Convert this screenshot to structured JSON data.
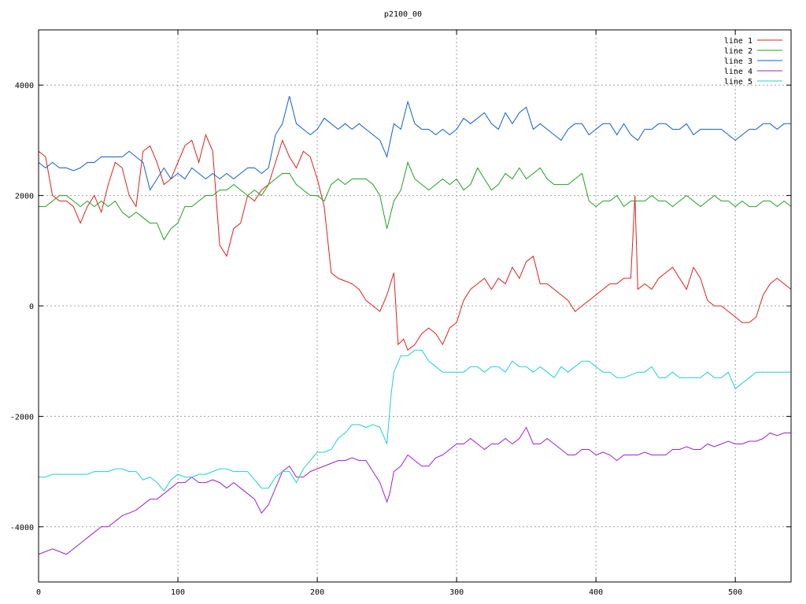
{
  "chart_data": {
    "type": "line",
    "title": "p2100_00",
    "xlim": [
      0,
      540
    ],
    "ylim": [
      -5000,
      5000
    ],
    "x_ticks": [
      0,
      100,
      200,
      300,
      400,
      500
    ],
    "y_ticks": [
      -4000,
      -2000,
      0,
      2000,
      4000
    ],
    "grid": true,
    "legend_position": "top-right",
    "series": [
      {
        "name": "line 1",
        "color": "#e0201c",
        "x": [
          0,
          5,
          10,
          15,
          20,
          25,
          30,
          35,
          40,
          45,
          50,
          55,
          60,
          65,
          70,
          75,
          80,
          85,
          90,
          95,
          100,
          105,
          110,
          115,
          120,
          125,
          130,
          135,
          140,
          145,
          150,
          155,
          160,
          165,
          170,
          175,
          180,
          185,
          190,
          195,
          200,
          205,
          210,
          215,
          220,
          225,
          230,
          235,
          240,
          245,
          250,
          255,
          258,
          262,
          265,
          270,
          275,
          280,
          285,
          290,
          295,
          300,
          305,
          310,
          315,
          320,
          325,
          330,
          335,
          340,
          345,
          350,
          355,
          360,
          365,
          370,
          375,
          380,
          385,
          390,
          395,
          400,
          405,
          410,
          415,
          420,
          425,
          428,
          430,
          435,
          440,
          445,
          450,
          455,
          460,
          465,
          470,
          475,
          480,
          485,
          490,
          495,
          500,
          505,
          510,
          515,
          520,
          525,
          530,
          535,
          540
        ],
        "y": [
          2800,
          2700,
          2000,
          1900,
          1900,
          1800,
          1500,
          1800,
          2000,
          1700,
          2200,
          2600,
          2500,
          2000,
          1800,
          2800,
          2900,
          2600,
          2200,
          2300,
          2600,
          2900,
          3000,
          2600,
          3100,
          2800,
          1100,
          900,
          1400,
          1500,
          2000,
          1900,
          2100,
          2200,
          2600,
          3000,
          2700,
          2500,
          2800,
          2700,
          2300,
          1800,
          600,
          500,
          450,
          400,
          300,
          100,
          0,
          -100,
          200,
          600,
          -700,
          -600,
          -800,
          -700,
          -500,
          -400,
          -500,
          -700,
          -400,
          -300,
          100,
          300,
          400,
          500,
          300,
          500,
          400,
          700,
          500,
          800,
          900,
          400,
          400,
          300,
          200,
          100,
          -100,
          0,
          100,
          200,
          300,
          400,
          400,
          500,
          500,
          2000,
          300,
          400,
          300,
          500,
          600,
          700,
          500,
          300,
          700,
          500,
          100,
          0,
          0,
          -100,
          -200,
          -300,
          -300,
          -200,
          200,
          400,
          500,
          400,
          300
        ]
      },
      {
        "name": "line 2",
        "color": "#20a020",
        "x": [
          0,
          5,
          10,
          15,
          20,
          25,
          30,
          35,
          40,
          45,
          50,
          55,
          60,
          65,
          70,
          75,
          80,
          85,
          90,
          95,
          100,
          105,
          110,
          115,
          120,
          125,
          130,
          135,
          140,
          145,
          150,
          155,
          160,
          165,
          170,
          175,
          180,
          185,
          190,
          195,
          200,
          205,
          210,
          215,
          220,
          225,
          230,
          235,
          240,
          245,
          250,
          255,
          260,
          265,
          270,
          275,
          280,
          285,
          290,
          295,
          300,
          305,
          310,
          315,
          320,
          325,
          330,
          335,
          340,
          345,
          350,
          355,
          360,
          365,
          370,
          375,
          380,
          385,
          390,
          395,
          400,
          405,
          410,
          415,
          420,
          425,
          430,
          435,
          440,
          445,
          450,
          455,
          460,
          465,
          470,
          475,
          480,
          485,
          490,
          495,
          500,
          505,
          510,
          515,
          520,
          525,
          530,
          535,
          540
        ],
        "y": [
          1800,
          1800,
          1900,
          2000,
          2000,
          1900,
          1800,
          1900,
          1800,
          1900,
          1800,
          1900,
          1700,
          1600,
          1700,
          1600,
          1500,
          1500,
          1200,
          1400,
          1500,
          1800,
          1800,
          1900,
          2000,
          2000,
          2100,
          2100,
          2200,
          2100,
          2000,
          2100,
          2000,
          2200,
          2300,
          2400,
          2400,
          2200,
          2100,
          2000,
          2000,
          1900,
          2200,
          2300,
          2200,
          2300,
          2300,
          2300,
          2200,
          2000,
          1400,
          1900,
          2100,
          2600,
          2300,
          2200,
          2100,
          2200,
          2300,
          2200,
          2300,
          2100,
          2200,
          2500,
          2300,
          2100,
          2200,
          2400,
          2300,
          2500,
          2300,
          2400,
          2500,
          2300,
          2200,
          2200,
          2200,
          2300,
          2400,
          1900,
          1800,
          1900,
          1900,
          2000,
          1800,
          1900,
          1900,
          1900,
          2000,
          1900,
          1900,
          1800,
          1900,
          2000,
          1900,
          1800,
          1900,
          2000,
          1900,
          1900,
          1800,
          1900,
          1800,
          1800,
          1900,
          1900,
          1800,
          1900,
          1800
        ]
      },
      {
        "name": "line 3",
        "color": "#1060c8",
        "x": [
          0,
          5,
          10,
          15,
          20,
          25,
          30,
          35,
          40,
          45,
          50,
          55,
          60,
          65,
          70,
          75,
          80,
          85,
          90,
          95,
          100,
          105,
          110,
          115,
          120,
          125,
          130,
          135,
          140,
          145,
          150,
          155,
          160,
          165,
          170,
          175,
          180,
          185,
          190,
          195,
          200,
          205,
          210,
          215,
          220,
          225,
          230,
          235,
          240,
          245,
          250,
          255,
          260,
          265,
          270,
          275,
          280,
          285,
          290,
          295,
          300,
          305,
          310,
          315,
          320,
          325,
          330,
          335,
          340,
          345,
          350,
          355,
          360,
          365,
          370,
          375,
          380,
          385,
          390,
          395,
          400,
          405,
          410,
          415,
          420,
          425,
          430,
          435,
          440,
          445,
          450,
          455,
          460,
          465,
          470,
          475,
          480,
          485,
          490,
          495,
          500,
          505,
          510,
          515,
          520,
          525,
          530,
          535,
          540
        ],
        "y": [
          2600,
          2500,
          2600,
          2500,
          2500,
          2450,
          2500,
          2600,
          2600,
          2700,
          2700,
          2700,
          2700,
          2800,
          2700,
          2600,
          2100,
          2300,
          2500,
          2300,
          2400,
          2300,
          2500,
          2400,
          2300,
          2400,
          2300,
          2400,
          2300,
          2400,
          2500,
          2500,
          2400,
          2500,
          3100,
          3300,
          3800,
          3300,
          3200,
          3100,
          3200,
          3400,
          3300,
          3200,
          3300,
          3200,
          3300,
          3200,
          3100,
          3000,
          2700,
          3300,
          3200,
          3700,
          3300,
          3200,
          3200,
          3100,
          3200,
          3100,
          3200,
          3400,
          3300,
          3400,
          3500,
          3300,
          3200,
          3500,
          3300,
          3500,
          3600,
          3200,
          3300,
          3200,
          3100,
          3000,
          3200,
          3300,
          3300,
          3100,
          3200,
          3300,
          3300,
          3100,
          3300,
          3100,
          3000,
          3200,
          3200,
          3300,
          3300,
          3200,
          3200,
          3300,
          3100,
          3200,
          3200,
          3200,
          3200,
          3100,
          3000,
          3100,
          3200,
          3200,
          3300,
          3300,
          3200,
          3300,
          3300
        ]
      },
      {
        "name": "line 4",
        "color": "#a020d0",
        "x": [
          0,
          5,
          10,
          15,
          20,
          25,
          30,
          35,
          40,
          45,
          50,
          55,
          60,
          65,
          70,
          75,
          80,
          85,
          90,
          95,
          100,
          105,
          110,
          115,
          120,
          125,
          130,
          135,
          140,
          145,
          150,
          155,
          160,
          165,
          170,
          175,
          180,
          185,
          190,
          195,
          200,
          205,
          210,
          215,
          220,
          225,
          230,
          235,
          240,
          245,
          250,
          252,
          255,
          260,
          265,
          270,
          275,
          280,
          285,
          290,
          295,
          300,
          305,
          310,
          315,
          320,
          325,
          330,
          335,
          340,
          345,
          350,
          355,
          360,
          365,
          370,
          375,
          380,
          385,
          390,
          395,
          400,
          405,
          410,
          415,
          420,
          425,
          430,
          435,
          440,
          445,
          450,
          455,
          460,
          465,
          470,
          475,
          480,
          485,
          490,
          495,
          500,
          505,
          510,
          515,
          520,
          525,
          530,
          535,
          540
        ],
        "y": [
          -4500,
          -4450,
          -4400,
          -4450,
          -4500,
          -4400,
          -4300,
          -4200,
          -4100,
          -4000,
          -4000,
          -3900,
          -3800,
          -3750,
          -3700,
          -3600,
          -3500,
          -3500,
          -3400,
          -3300,
          -3200,
          -3200,
          -3100,
          -3200,
          -3200,
          -3150,
          -3200,
          -3300,
          -3200,
          -3300,
          -3400,
          -3500,
          -3750,
          -3600,
          -3300,
          -3000,
          -2900,
          -3100,
          -3100,
          -3000,
          -2950,
          -2900,
          -2850,
          -2800,
          -2800,
          -2750,
          -2800,
          -2800,
          -3000,
          -3200,
          -3550,
          -3400,
          -3000,
          -2900,
          -2700,
          -2800,
          -2900,
          -2900,
          -2750,
          -2700,
          -2600,
          -2500,
          -2500,
          -2400,
          -2500,
          -2600,
          -2500,
          -2500,
          -2400,
          -2500,
          -2400,
          -2200,
          -2500,
          -2500,
          -2400,
          -2500,
          -2600,
          -2700,
          -2700,
          -2600,
          -2600,
          -2700,
          -2650,
          -2700,
          -2800,
          -2700,
          -2700,
          -2700,
          -2650,
          -2700,
          -2700,
          -2700,
          -2600,
          -2600,
          -2550,
          -2600,
          -2600,
          -2500,
          -2550,
          -2500,
          -2450,
          -2500,
          -2500,
          -2450,
          -2450,
          -2400,
          -2300,
          -2350,
          -2300,
          -2300
        ]
      },
      {
        "name": "line 5",
        "color": "#20d0d0",
        "x": [
          0,
          5,
          10,
          15,
          20,
          25,
          30,
          35,
          40,
          45,
          50,
          55,
          60,
          65,
          70,
          75,
          80,
          85,
          90,
          95,
          100,
          105,
          110,
          115,
          120,
          125,
          130,
          135,
          140,
          145,
          150,
          155,
          160,
          165,
          170,
          175,
          180,
          185,
          190,
          195,
          200,
          205,
          210,
          215,
          220,
          225,
          230,
          235,
          240,
          245,
          250,
          253,
          255,
          260,
          265,
          270,
          275,
          280,
          285,
          290,
          295,
          300,
          305,
          310,
          315,
          320,
          325,
          330,
          335,
          340,
          345,
          350,
          355,
          360,
          365,
          370,
          375,
          380,
          385,
          390,
          395,
          400,
          405,
          410,
          415,
          420,
          425,
          430,
          435,
          440,
          445,
          450,
          455,
          460,
          465,
          470,
          475,
          480,
          485,
          490,
          495,
          500,
          505,
          510,
          515,
          520,
          525,
          530,
          535,
          540
        ],
        "y": [
          -3100,
          -3100,
          -3050,
          -3050,
          -3050,
          -3050,
          -3050,
          -3050,
          -3000,
          -3000,
          -3000,
          -2950,
          -2950,
          -3000,
          -3000,
          -3150,
          -3100,
          -3200,
          -3350,
          -3150,
          -3050,
          -3100,
          -3100,
          -3050,
          -3050,
          -3000,
          -2950,
          -2950,
          -3000,
          -3000,
          -3000,
          -3150,
          -3300,
          -3300,
          -3100,
          -3000,
          -3000,
          -3200,
          -2950,
          -2800,
          -2650,
          -2650,
          -2600,
          -2400,
          -2300,
          -2150,
          -2150,
          -2200,
          -2150,
          -2200,
          -2500,
          -1600,
          -1200,
          -900,
          -900,
          -800,
          -800,
          -1000,
          -1100,
          -1200,
          -1200,
          -1200,
          -1200,
          -1100,
          -1100,
          -1200,
          -1100,
          -1100,
          -1200,
          -1000,
          -1100,
          -1100,
          -1200,
          -1100,
          -1200,
          -1300,
          -1100,
          -1200,
          -1100,
          -1000,
          -1000,
          -1100,
          -1200,
          -1200,
          -1300,
          -1300,
          -1250,
          -1200,
          -1200,
          -1100,
          -1300,
          -1300,
          -1200,
          -1300,
          -1300,
          -1300,
          -1300,
          -1200,
          -1300,
          -1300,
          -1200,
          -1500,
          -1400,
          -1300,
          -1200,
          -1200,
          -1200,
          -1200,
          -1200,
          -1200
        ]
      }
    ]
  }
}
